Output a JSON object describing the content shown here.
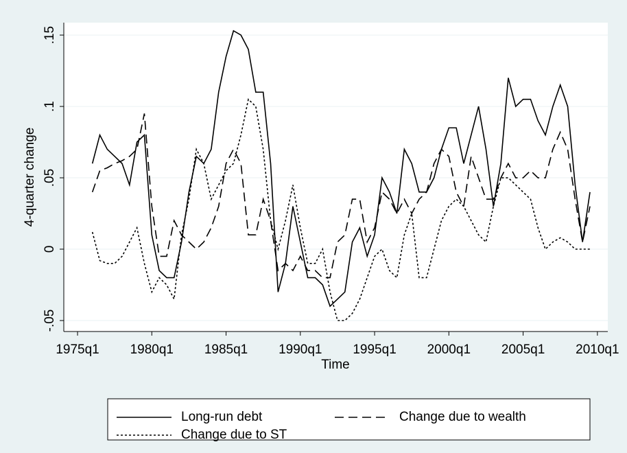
{
  "chart_data": {
    "type": "line",
    "xlabel": "Time",
    "ylabel": "4-quarter change",
    "x": [
      64,
      66,
      68,
      70,
      72,
      74,
      76,
      78,
      80,
      82,
      84,
      86,
      88,
      90,
      92,
      94,
      96,
      98,
      100,
      102,
      104,
      106,
      108,
      110,
      112,
      114,
      116,
      118,
      120,
      122,
      124,
      126,
      128,
      130,
      132,
      134,
      136,
      138,
      140,
      142,
      144,
      146,
      148,
      150,
      152,
      154,
      156,
      158,
      160,
      162,
      164,
      166,
      168,
      170,
      172,
      174,
      176,
      178,
      180,
      182,
      184,
      186,
      188,
      190,
      192,
      194,
      196,
      198
    ],
    "series": [
      {
        "name": "Long-run debt",
        "color": "#000000",
        "dash": "solid",
        "values": [
          0.06,
          0.08,
          0.07,
          0.065,
          0.06,
          0.045,
          0.075,
          0.08,
          0.01,
          -0.015,
          -0.02,
          -0.02,
          0.005,
          0.04,
          0.065,
          0.06,
          0.07,
          0.11,
          0.135,
          0.153,
          0.15,
          0.14,
          0.11,
          0.11,
          0.06,
          -0.03,
          -0.01,
          0.03,
          0.005,
          -0.02,
          -0.02,
          -0.025,
          -0.04,
          -0.035,
          -0.03,
          0.005,
          0.015,
          -0.005,
          0.01,
          0.05,
          0.04,
          0.025,
          0.07,
          0.06,
          0.04,
          0.04,
          0.05,
          0.07,
          0.085,
          0.085,
          0.06,
          0.08,
          0.1,
          0.07,
          0.03,
          0.06,
          0.12,
          0.1,
          0.105,
          0.105,
          0.09,
          0.08,
          0.1,
          0.115,
          0.1,
          0.045,
          0.005,
          0.04
        ]
      },
      {
        "name": "Change due to wealth",
        "color": "#000000",
        "dash": "long",
        "values": [
          0.04,
          0.055,
          0.057,
          0.06,
          0.062,
          0.065,
          0.07,
          0.095,
          0.03,
          -0.005,
          -0.005,
          0.02,
          0.01,
          0.005,
          0.0,
          0.005,
          0.015,
          0.03,
          0.06,
          0.07,
          0.06,
          0.01,
          0.01,
          0.035,
          0.02,
          -0.015,
          -0.01,
          -0.015,
          -0.005,
          -0.015,
          -0.015,
          -0.02,
          -0.02,
          0.005,
          0.01,
          0.035,
          0.035,
          0.005,
          0.015,
          0.04,
          0.035,
          0.025,
          0.035,
          0.025,
          0.035,
          0.04,
          0.06,
          0.07,
          0.065,
          0.04,
          0.03,
          0.065,
          0.05,
          0.035,
          0.035,
          0.05,
          0.06,
          0.05,
          0.05,
          0.055,
          0.05,
          0.05,
          0.07,
          0.082,
          0.07,
          0.035,
          0.005,
          0.03
        ]
      },
      {
        "name": "Change due to ST",
        "color": "#000000",
        "dash": "short",
        "values": [
          0.012,
          -0.008,
          -0.01,
          -0.01,
          -0.005,
          0.005,
          0.015,
          -0.01,
          -0.03,
          -0.02,
          -0.025,
          -0.035,
          0.01,
          0.035,
          0.07,
          0.06,
          0.035,
          0.045,
          0.055,
          0.06,
          0.08,
          0.105,
          0.1,
          0.07,
          0.02,
          0.0,
          0.02,
          0.045,
          0.015,
          -0.01,
          -0.01,
          0.0,
          -0.03,
          -0.05,
          -0.05,
          -0.045,
          -0.035,
          -0.02,
          -0.005,
          0.0,
          -0.015,
          -0.02,
          0.01,
          0.025,
          -0.02,
          -0.02,
          0.0,
          0.02,
          0.03,
          0.035,
          0.03,
          0.02,
          0.01,
          0.005,
          0.03,
          0.05,
          0.05,
          0.045,
          0.04,
          0.035,
          0.015,
          0.0,
          0.005,
          0.008,
          0.005,
          0.0,
          0.0,
          0.0
        ]
      }
    ],
    "xlim": [
      56.3,
      202.8
    ],
    "xticks": [
      {
        "value": 60,
        "label": "1975q1"
      },
      {
        "value": 80,
        "label": "1980q1"
      },
      {
        "value": 100,
        "label": "1985q1"
      },
      {
        "value": 120,
        "label": "1990q1"
      },
      {
        "value": 140,
        "label": "1995q1"
      },
      {
        "value": 160,
        "label": "2000q1"
      },
      {
        "value": 180,
        "label": "2005q1"
      },
      {
        "value": 200,
        "label": "2010q1"
      }
    ],
    "ylim": [
      -0.0577,
      0.1587
    ],
    "yticks": [
      {
        "value": -0.05,
        "label": "-.05"
      },
      0,
      {
        "value": 0.05,
        "label": ".05"
      },
      {
        "value": 0.1,
        "label": ".1"
      },
      {
        "value": 0.15,
        "label": ".15"
      }
    ],
    "grid": true
  }
}
